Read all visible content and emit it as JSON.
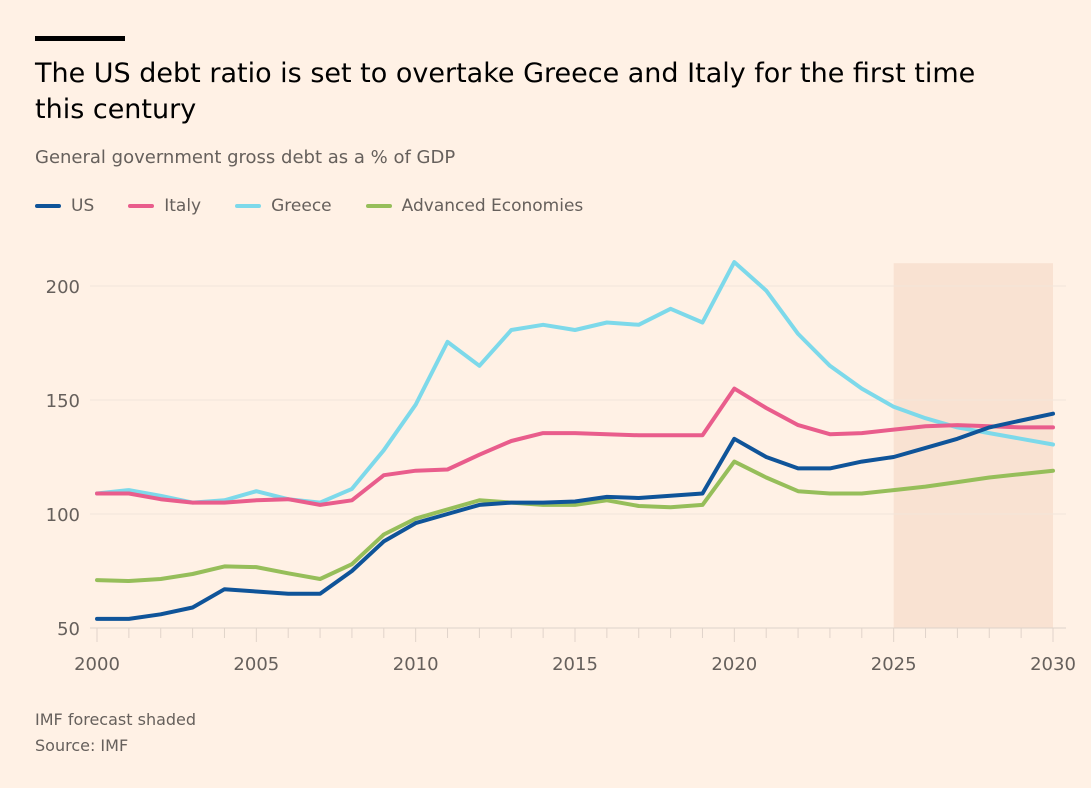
{
  "chart_data": {
    "type": "line",
    "title": "The US debt ratio is set to overtake Greece and Italy for the first time this century",
    "subtitle": "General government gross debt as a % of GDP",
    "xlabel": "",
    "ylabel": "",
    "x": [
      2000,
      2001,
      2002,
      2003,
      2004,
      2005,
      2006,
      2007,
      2008,
      2009,
      2010,
      2011,
      2012,
      2013,
      2014,
      2015,
      2016,
      2017,
      2018,
      2019,
      2020,
      2021,
      2022,
      2023,
      2024,
      2025,
      2026,
      2027,
      2028,
      2029,
      2030
    ],
    "xlim": [
      2000,
      2030
    ],
    "ylim": [
      50,
      210
    ],
    "x_ticks": [
      "2000",
      "2005",
      "2010",
      "2015",
      "2020",
      "2025",
      "2030"
    ],
    "y_ticks": [
      "50",
      "100",
      "150",
      "200"
    ],
    "grid": "horizontal",
    "legend_position": "top-left",
    "series": [
      {
        "name": "US",
        "color": "#0f5499",
        "values": [
          54,
          54,
          56,
          59,
          67,
          66,
          65,
          65,
          75,
          88,
          96,
          100,
          104,
          105,
          105,
          105.5,
          107.5,
          107,
          108,
          109,
          133,
          125,
          120,
          120,
          123,
          125,
          129,
          133,
          138,
          141,
          144
        ]
      },
      {
        "name": "Italy",
        "color": "#e95d8c",
        "values": [
          109,
          109,
          106.5,
          105,
          105,
          106,
          106.5,
          104,
          106,
          117,
          119,
          119.5,
          126,
          132,
          135.5,
          135.5,
          135,
          134.5,
          134.5,
          134.5,
          155,
          146.5,
          139,
          135,
          135.5,
          137,
          138.5,
          139,
          138.5,
          138,
          138
        ]
      },
      {
        "name": "Greece",
        "color": "#7dd9ea",
        "values": [
          109,
          110.5,
          108,
          105,
          106,
          110,
          106.5,
          105,
          111,
          128,
          148,
          175.5,
          165,
          180.7,
          183,
          180.7,
          184,
          183,
          190,
          184,
          210.5,
          198,
          179,
          165,
          155,
          147,
          142,
          138,
          135.5,
          133,
          130.5
        ]
      },
      {
        "name": "Advanced Economies",
        "color": "#96be5a",
        "values": [
          71,
          70.6,
          71.5,
          73.7,
          77,
          76.7,
          74,
          71.5,
          78,
          91,
          98,
          102,
          106,
          105,
          104,
          104,
          106,
          103.5,
          103,
          104,
          123,
          116,
          110,
          109,
          109,
          110.5,
          112,
          114,
          116,
          117.5,
          119
        ]
      }
    ],
    "shaded_range": {
      "from": 2025,
      "to": 2030,
      "color": "#f9e2d2"
    },
    "notes": [
      "IMF forecast shaded",
      "Source: IMF"
    ]
  }
}
